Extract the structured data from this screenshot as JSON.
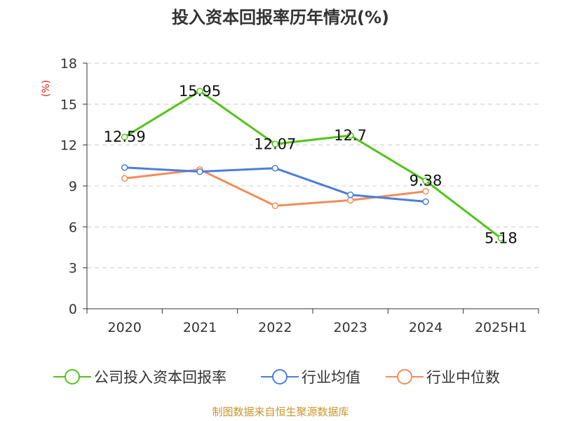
{
  "chart_data": {
    "type": "line",
    "title": "投入资本回报率历年情况(%)",
    "ylabel": "(%)",
    "ylim": [
      0,
      18
    ],
    "yticks": [
      0,
      3,
      6,
      9,
      12,
      15,
      18
    ],
    "grid": true,
    "legend_position": "bottom",
    "categories": [
      "2020",
      "2021",
      "2022",
      "2023",
      "2024",
      "2025H1"
    ],
    "series": [
      {
        "name": "公司投入资本回报率",
        "color": "#52c41a",
        "values": [
          12.59,
          15.95,
          12.07,
          12.7,
          9.38,
          5.18
        ],
        "labels": [
          "12.59",
          "15.95",
          "12.07",
          "12.7",
          "9.38",
          "5.18"
        ]
      },
      {
        "name": "行业均值",
        "color": "#4a7fd9",
        "values": [
          10.35,
          10.05,
          10.3,
          8.35,
          7.85,
          null
        ]
      },
      {
        "name": "行业中位数",
        "color": "#f28c5a",
        "values": [
          9.55,
          10.2,
          7.55,
          7.95,
          8.6,
          null
        ]
      }
    ]
  },
  "source": "制图数据来自恒生聚源数据库"
}
